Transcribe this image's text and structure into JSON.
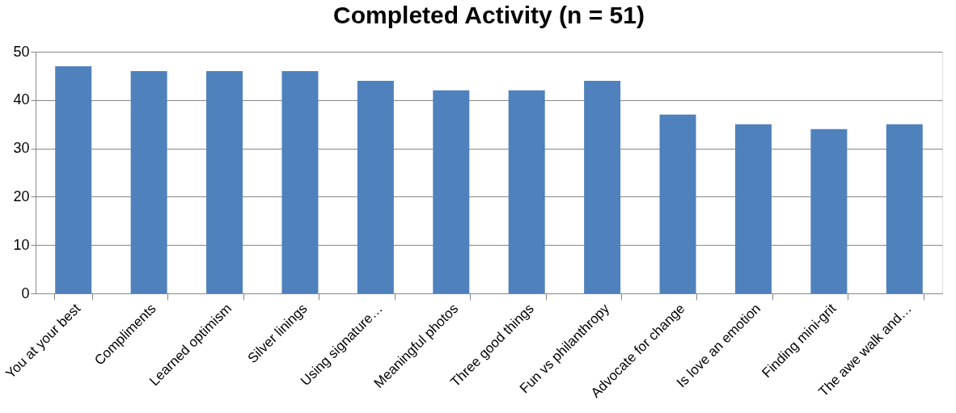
{
  "chart_data": {
    "type": "bar",
    "title": "Completed Activity (n = 51)",
    "categories": [
      "You at your best",
      "Compliments",
      "Learned optimism",
      "Silver linings",
      "Using signature…",
      "Meaningful photos",
      "Three good things",
      "Fun vs philanthropy",
      "Advocate for change",
      "Is love an emotion",
      "Finding mini-grit",
      "The awe walk and…"
    ],
    "values": [
      47,
      46,
      46,
      46,
      44,
      42,
      42,
      44,
      37,
      35,
      34,
      35
    ],
    "color": "#4f81bd",
    "ylim": [
      0,
      50
    ],
    "yticks": [
      0,
      10,
      20,
      30,
      40,
      50
    ],
    "grid": "y"
  }
}
